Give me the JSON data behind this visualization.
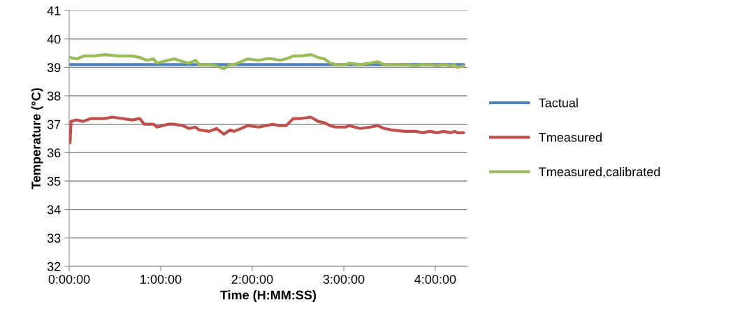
{
  "chart_data": {
    "type": "line",
    "xlabel": "Time (H:MM:SS)",
    "ylabel": "Temperature (°C)",
    "xlim": [
      0,
      4.35
    ],
    "xticks": [
      {
        "value": 0,
        "label": "0:00:00"
      },
      {
        "value": 1,
        "label": "1:00:00"
      },
      {
        "value": 2,
        "label": "2:00:00"
      },
      {
        "value": 3,
        "label": "3:00:00"
      },
      {
        "value": 4,
        "label": "4:00:00"
      }
    ],
    "ylim": [
      32,
      41
    ],
    "yticks": [
      32,
      33,
      34,
      35,
      36,
      37,
      38,
      39,
      40,
      41
    ],
    "grid": "y",
    "legend": "right",
    "marker": "none",
    "line_style": "solid",
    "series": [
      {
        "name": "Tactual",
        "color": "#4f81bd",
        "x": [
          0.01,
          4.31
        ],
        "values": [
          39.1,
          39.1
        ]
      },
      {
        "name": "Tmeasured",
        "color": "#c0504d",
        "x": [
          0.01,
          0.02,
          0.08,
          0.15,
          0.24,
          0.39,
          0.47,
          0.58,
          0.69,
          0.77,
          0.82,
          0.92,
          0.96,
          1.08,
          1.15,
          1.24,
          1.31,
          1.38,
          1.42,
          1.53,
          1.61,
          1.69,
          1.76,
          1.8,
          1.88,
          1.95,
          2.07,
          2.15,
          2.22,
          2.3,
          2.37,
          2.45,
          2.53,
          2.64,
          2.72,
          2.79,
          2.85,
          2.91,
          3.02,
          3.06,
          3.18,
          3.29,
          3.37,
          3.44,
          3.52,
          3.67,
          3.79,
          3.86,
          3.94,
          4.02,
          4.09,
          4.17,
          4.21,
          4.24,
          4.31
        ],
        "values": [
          36.35,
          37.1,
          37.15,
          37.1,
          37.2,
          37.2,
          37.25,
          37.2,
          37.15,
          37.2,
          37.0,
          37.0,
          36.9,
          37.0,
          37.0,
          36.95,
          36.85,
          36.9,
          36.8,
          36.75,
          36.85,
          36.65,
          36.8,
          36.75,
          36.85,
          36.95,
          36.9,
          36.95,
          37.0,
          36.95,
          36.95,
          37.2,
          37.2,
          37.25,
          37.1,
          37.05,
          36.95,
          36.9,
          36.9,
          36.95,
          36.85,
          36.9,
          36.95,
          36.85,
          36.8,
          36.75,
          36.75,
          36.7,
          36.75,
          36.7,
          36.75,
          36.7,
          36.75,
          36.7,
          36.7
        ]
      },
      {
        "name": "Tmeasured,calibrated",
        "color": "#9bbb59",
        "x": [
          0.01,
          0.08,
          0.16,
          0.27,
          0.39,
          0.54,
          0.69,
          0.77,
          0.85,
          0.92,
          0.96,
          1.08,
          1.15,
          1.24,
          1.31,
          1.38,
          1.42,
          1.53,
          1.61,
          1.69,
          1.76,
          1.8,
          1.88,
          1.95,
          2.07,
          2.15,
          2.22,
          2.3,
          2.37,
          2.45,
          2.53,
          2.64,
          2.72,
          2.79,
          2.85,
          2.91,
          3.02,
          3.06,
          3.18,
          3.29,
          3.37,
          3.44,
          3.52,
          3.67,
          3.79,
          3.86,
          3.94,
          4.02,
          4.09,
          4.17,
          4.21,
          4.24,
          4.31
        ],
        "values": [
          39.35,
          39.3,
          39.4,
          39.4,
          39.45,
          39.4,
          39.4,
          39.35,
          39.25,
          39.3,
          39.15,
          39.25,
          39.3,
          39.2,
          39.15,
          39.25,
          39.1,
          39.1,
          39.05,
          38.95,
          39.1,
          39.1,
          39.2,
          39.3,
          39.25,
          39.3,
          39.3,
          39.25,
          39.3,
          39.4,
          39.4,
          39.45,
          39.35,
          39.3,
          39.15,
          39.1,
          39.1,
          39.15,
          39.1,
          39.15,
          39.2,
          39.1,
          39.1,
          39.1,
          39.05,
          39.1,
          39.1,
          39.05,
          39.1,
          39.05,
          39.1,
          39.0,
          39.05
        ]
      }
    ]
  }
}
